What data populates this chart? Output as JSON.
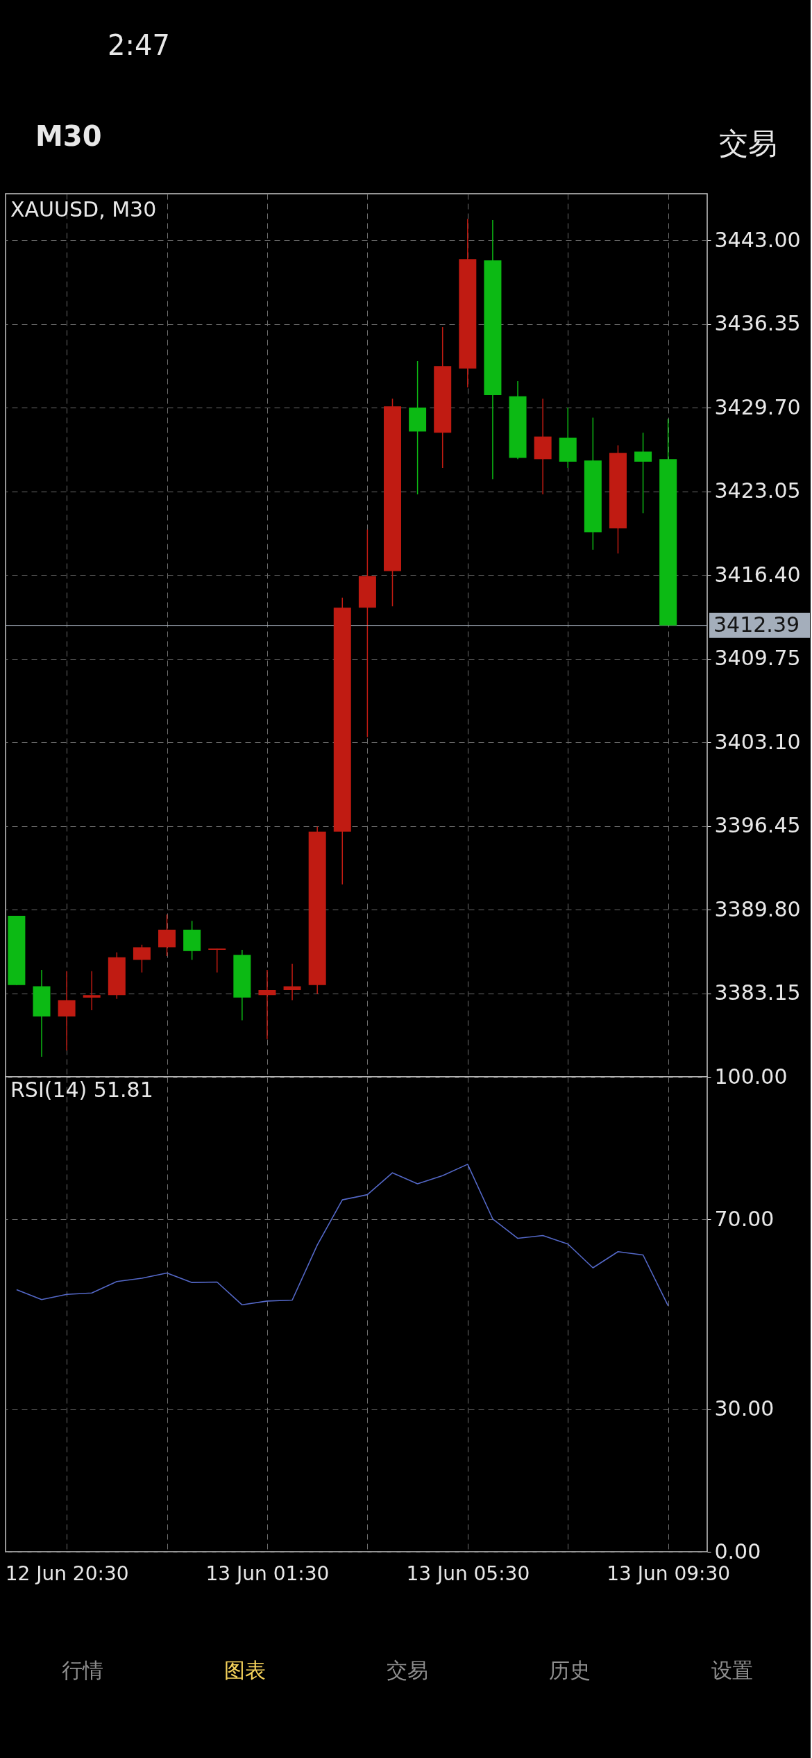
{
  "chart_data": [
    {
      "type": "other",
      "annotations": [
        "2:47",
        "M30",
        "交易"
      ]
    },
    {
      "type": "candlestick",
      "title": "XAUUSD, M30",
      "categories": [
        null,
        null,
        null,
        null,
        null,
        null,
        null,
        null,
        null,
        null,
        null,
        null,
        null,
        null,
        null,
        null,
        null,
        null,
        null,
        null,
        null,
        null,
        null,
        null,
        null,
        null,
        null
      ],
      "ohlc": [
        [
          3389.3,
          3389.3,
          3383.8,
          3383.8
        ],
        [
          3383.7,
          3385.0,
          3378.1,
          3381.3
        ],
        [
          3381.3,
          3384.9,
          3378.6,
          3382.6
        ],
        [
          3382.8,
          3384.9,
          3381.8,
          3383.0
        ],
        [
          3383.0,
          3386.4,
          3382.7,
          3386.0
        ],
        [
          3385.8,
          3387.0,
          3384.8,
          3386.8
        ],
        [
          3386.8,
          3389.4,
          3386.1,
          3388.2
        ],
        [
          3388.2,
          3388.9,
          3385.8,
          3386.5
        ],
        [
          3386.6,
          3386.7,
          3384.8,
          3386.7
        ],
        [
          3386.2,
          3386.6,
          3381.0,
          3382.8
        ],
        [
          3383.0,
          3385.0,
          3379.5,
          3383.4
        ],
        [
          3383.4,
          3385.5,
          3382.6,
          3383.7
        ],
        [
          3383.8,
          3396.4,
          3383.1,
          3396.0
        ],
        [
          3396.0,
          3414.6,
          3391.8,
          3413.8
        ],
        [
          3413.8,
          3420.0,
          3403.5,
          3416.3
        ],
        [
          3416.7,
          3430.4,
          3413.9,
          3429.8
        ],
        [
          3429.7,
          3433.4,
          3422.8,
          3427.8
        ],
        [
          3427.7,
          3436.1,
          3424.9,
          3433.0
        ],
        [
          3432.8,
          3444.7,
          3431.3,
          3441.5
        ],
        [
          3441.4,
          3444.6,
          3424.0,
          3430.7
        ],
        [
          3430.6,
          3431.8,
          3425.6,
          3425.7
        ],
        [
          3425.6,
          3430.4,
          3422.8,
          3427.4
        ],
        [
          3427.3,
          3429.7,
          3424.9,
          3425.4
        ],
        [
          3425.5,
          3428.9,
          3418.4,
          3419.8
        ],
        [
          3420.1,
          3426.7,
          3418.1,
          3426.1
        ],
        [
          3426.2,
          3427.7,
          3421.3,
          3425.4
        ],
        [
          3425.6,
          3428.8,
          3412.39,
          3412.39
        ]
      ],
      "colors": [
        "#0cba14",
        "#0cba14",
        "#c01b12",
        "#c01b12",
        "#c01b12",
        "#c01b12",
        "#c01b12",
        "#0cba14",
        "#c01b12",
        "#0cba14",
        "#c01b12",
        "#c01b12",
        "#c01b12",
        "#c01b12",
        "#c01b12",
        "#c01b12",
        "#0cba14",
        "#c01b12",
        "#c01b12",
        "#0cba14",
        "#0cba14",
        "#c01b12",
        "#0cba14",
        "#0cba14",
        "#c01b12",
        "#0cba14",
        "#0cba14"
      ],
      "ylim": [
        3376.5,
        3446.7
      ],
      "yticks": [
        3383.15,
        {
          "value": 3389.8,
          "label": "3389.80"
        },
        3396.45,
        {
          "value": 3403.1,
          "label": "3403.10"
        },
        3409.75,
        {
          "value": 3416.4,
          "label": "3416.40"
        },
        3423.05,
        {
          "value": 3429.7,
          "label": "3429.70"
        },
        3436.35,
        {
          "value": 3443,
          "label": "3443.00"
        }
      ],
      "ref_lines": [
        {
          "axis": "y",
          "value": 3412.39,
          "label": "3412.39",
          "color": "#a4aebb"
        }
      ],
      "grid": true,
      "tick_labels": "y"
    },
    {
      "type": "line",
      "title": "RSI(14) 51.81",
      "categories": [
        null,
        null,
        "12 Jun 20:30",
        null,
        null,
        null,
        null,
        null,
        null,
        null,
        "13 Jun 01:30",
        null,
        null,
        null,
        null,
        null,
        null,
        null,
        "13 Jun 05:30",
        null,
        null,
        null,
        null,
        null,
        null,
        null,
        "13 Jun 09:30"
      ],
      "series": [
        {
          "color": "#5468c8",
          "values": [
            55.2,
            53.1,
            54.2,
            54.5,
            56.9,
            57.6,
            58.7,
            56.7,
            56.8,
            52.0,
            52.8,
            53.0,
            64.6,
            74.1,
            75.2,
            79.8,
            77.5,
            79.2,
            81.6,
            70.1,
            66.0,
            66.6,
            64.8,
            59.8,
            63.2,
            62.5,
            51.81
          ]
        }
      ],
      "ylim": [
        0,
        100
      ],
      "yticks": [
        {
          "value": 0,
          "label": "0.00"
        },
        {
          "value": 30,
          "label": "30.00"
        },
        {
          "value": 70,
          "label": "70.00"
        },
        {
          "value": 100,
          "label": "100.00"
        }
      ],
      "grid": true
    },
    {
      "type": "other",
      "annotations": [
        "行情",
        "图表",
        "交易",
        "历史",
        "设置"
      ],
      "colors": [
        "#8e8e8e",
        "#f6d35b",
        "#8e8e8e",
        "#8e8e8e",
        "#8e8e8e"
      ]
    }
  ]
}
